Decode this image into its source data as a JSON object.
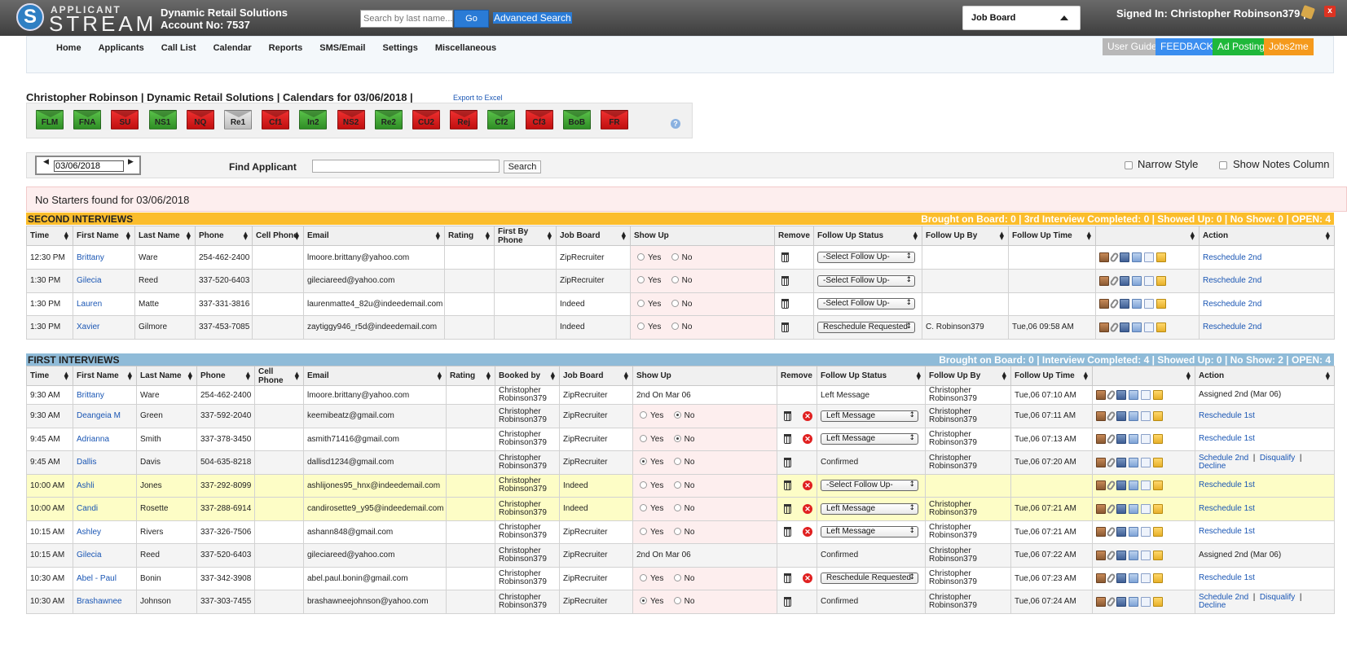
{
  "header": {
    "logo_top": "APPLICANT",
    "logo_main": "STREAM",
    "logo_mark": "S",
    "company": "Dynamic Retail Solutions",
    "account": "Account No: 7537",
    "search_placeholder": "Search by last name...",
    "go_label": "Go",
    "advanced_search": "Advanced Search",
    "job_board_select": "Job Board",
    "signed_in": "Signed In: Christopher Robinson379 |",
    "close_glyph": "x"
  },
  "nav": {
    "items": [
      "Home",
      "Applicants",
      "Call List",
      "Calendar",
      "Reports",
      "SMS/Email",
      "Settings",
      "Miscellaneous"
    ],
    "user_guide": "User Guide",
    "feedback": "FEEDBACK",
    "ad_posting": "Ad Posting",
    "jobs2me": "Jobs2me"
  },
  "page": {
    "title": "Christopher Robinson | Dynamic Retail Solutions | Calendars for 03/06/2018 |",
    "export": "Export to Excel",
    "help_glyph": "?"
  },
  "calendars": [
    {
      "code": "FLM",
      "color": "green"
    },
    {
      "code": "FNA",
      "color": "green"
    },
    {
      "code": "SU",
      "color": "red"
    },
    {
      "code": "NS1",
      "color": "green"
    },
    {
      "code": "NQ",
      "color": "red"
    },
    {
      "code": "Re1",
      "color": "gray"
    },
    {
      "code": "Cf1",
      "color": "red"
    },
    {
      "code": "In2",
      "color": "green"
    },
    {
      "code": "NS2",
      "color": "red"
    },
    {
      "code": "Re2",
      "color": "green"
    },
    {
      "code": "CU2",
      "color": "red"
    },
    {
      "code": "Rej",
      "color": "red"
    },
    {
      "code": "Cf2",
      "color": "green"
    },
    {
      "code": "Cf3",
      "color": "red"
    },
    {
      "code": "BoB",
      "color": "green"
    },
    {
      "code": "FR",
      "color": "red"
    }
  ],
  "filters": {
    "date_prev": "◀",
    "date_next": "▶",
    "date": "03/06/2018",
    "find_label": "Find Applicant",
    "find_button": "Search",
    "narrow_style": "Narrow Style",
    "show_notes": "Show Notes Column"
  },
  "no_starters": "No Starters found for 03/06/2018",
  "colors": {
    "second_bar": "#fbbd2c",
    "first_bar": "#8fbbd8",
    "feedback": "#3a8ef0",
    "ad_posting": "#1fb83a",
    "jobs2me": "#f59a1c",
    "user_guide": "#b8b8b8"
  },
  "second_interviews": {
    "title": "SECOND INTERVIEWS",
    "stats": "Brought on Board: 0 | 3rd Interview Completed: 0 | Showed Up: 0 | No Show: 0 | OPEN: 4",
    "columns": [
      "Time",
      "First Name",
      "Last Name",
      "Phone",
      "Cell Phone",
      "Email",
      "Rating",
      "First By Phone",
      "Job Board",
      "Show Up",
      "Remove",
      "Follow Up Status",
      "Follow Up By",
      "Follow Up Time",
      "",
      "Action"
    ],
    "rows": [
      {
        "time": "12:30 PM",
        "first": "Brittany",
        "last": "Ware",
        "phone": "254-462-2400",
        "cell": "",
        "email": "lmoore.brittany@yahoo.com",
        "rating": "",
        "fbp": "",
        "board": "ZipRecruiter",
        "yes": "Yes",
        "no": "No",
        "followup": "-Select Follow Up-",
        "fby": "",
        "ftime": "",
        "action": "Reschedule 2nd"
      },
      {
        "time": "1:30 PM",
        "first": "Gilecia",
        "last": "Reed",
        "phone": "337-520-6403",
        "cell": "",
        "email": "gileciareed@yahoo.com",
        "rating": "",
        "fbp": "",
        "board": "ZipRecruiter",
        "yes": "Yes",
        "no": "No",
        "followup": "-Select Follow Up-",
        "fby": "",
        "ftime": "",
        "action": "Reschedule 2nd"
      },
      {
        "time": "1:30 PM",
        "first": "Lauren",
        "last": "Matte",
        "phone": "337-331-3816",
        "cell": "",
        "email": "laurenmatte4_82u@indeedemail.com",
        "rating": "",
        "fbp": "",
        "board": "Indeed",
        "yes": "Yes",
        "no": "No",
        "followup": "-Select Follow Up-",
        "fby": "",
        "ftime": "",
        "action": "Reschedule 2nd"
      },
      {
        "time": "1:30 PM",
        "first": "Xavier",
        "last": "Gilmore",
        "phone": "337-453-7085",
        "cell": "",
        "email": "zaytiggy946_r5d@indeedemail.com",
        "rating": "",
        "fbp": "",
        "board": "Indeed",
        "yes": "Yes",
        "no": "No",
        "followup": "Reschedule Requested",
        "fby": "C. Robinson379",
        "ftime": "Tue,06 09:58 AM",
        "action": "Reschedule 2nd"
      }
    ]
  },
  "first_interviews": {
    "title": "FIRST INTERVIEWS",
    "stats": "Brought on Board: 0 | Interview Completed: 4 | Showed Up: 0 | No Show: 2 | OPEN: 4",
    "columns": [
      "Time",
      "First Name",
      "Last Name",
      "Phone",
      "Cell Phone",
      "Email",
      "Rating",
      "Booked by",
      "Job Board",
      "Show Up",
      "Remove",
      "Follow Up Status",
      "Follow Up By",
      "Follow Up Time",
      "",
      "Action"
    ],
    "rows": [
      {
        "time": "9:30 AM",
        "first": "Brittany",
        "last": "Ware",
        "phone": "254-462-2400",
        "email": "lmoore.brittany@yahoo.com",
        "booked": "Christopher Robinson379",
        "board": "ZipRecruiter",
        "show": "2nd On Mar 06",
        "followup": "Left Message",
        "fby": "Christopher Robinson379",
        "ftime": "Tue,06 07:10 AM",
        "action": "Assigned 2nd (Mar 06)"
      },
      {
        "time": "9:30 AM",
        "first": "Deangeia M",
        "last": "Green",
        "phone": "337-592-2040",
        "email": "keemibeatz@gmail.com",
        "booked": "Christopher Robinson379",
        "board": "ZipRecruiter",
        "yes": "Yes",
        "no": "No",
        "followup": "Left Message",
        "fby": "Christopher Robinson379",
        "ftime": "Tue,06 07:11 AM",
        "action": "Reschedule 1st"
      },
      {
        "time": "9:45 AM",
        "first": "Adrianna",
        "last": "Smith",
        "phone": "337-378-3450",
        "email": "asmith71416@gmail.com",
        "booked": "Christopher Robinson379",
        "board": "ZipRecruiter",
        "yes": "Yes",
        "no": "No",
        "followup": "Left Message",
        "fby": "Christopher Robinson379",
        "ftime": "Tue,06 07:13 AM",
        "action": "Reschedule 1st"
      },
      {
        "time": "9:45 AM",
        "first": "Dallis",
        "last": "Davis",
        "phone": "504-635-8218",
        "email": "dallisd1234@gmail.com",
        "booked": "Christopher Robinson379",
        "board": "ZipRecruiter",
        "yes": "Yes",
        "no": "No",
        "followup": "Confirmed",
        "fby": "Christopher Robinson379",
        "ftime": "Tue,06 07:20 AM",
        "action_a": "Schedule 2nd",
        "action_b": "Disqualify",
        "action_c": "Decline",
        "sep": "|"
      },
      {
        "time": "10:00 AM",
        "first": "Ashli",
        "last": "Jones",
        "phone": "337-292-8099",
        "email": "ashlijones95_hnx@indeedemail.com",
        "booked": "Christopher Robinson379",
        "board": "Indeed",
        "yes": "Yes",
        "no": "No",
        "followup": "-Select Follow Up-",
        "fby": "",
        "ftime": "",
        "action": "Reschedule 1st"
      },
      {
        "time": "10:00 AM",
        "first": "Candi",
        "last": "Rosette",
        "phone": "337-288-6914",
        "email": "candirosette9_y95@indeedemail.com",
        "booked": "Christopher Robinson379",
        "board": "Indeed",
        "yes": "Yes",
        "no": "No",
        "followup": "Left Message",
        "fby": "Christopher Robinson379",
        "ftime": "Tue,06 07:21 AM",
        "action": "Reschedule 1st"
      },
      {
        "time": "10:15 AM",
        "first": "Ashley",
        "last": "Rivers",
        "phone": "337-326-7506",
        "email": "ashann848@gmail.com",
        "booked": "Christopher Robinson379",
        "board": "ZipRecruiter",
        "yes": "Yes",
        "no": "No",
        "followup": "Left Message",
        "fby": "Christopher Robinson379",
        "ftime": "Tue,06 07:21 AM",
        "action": "Reschedule 1st"
      },
      {
        "time": "10:15 AM",
        "first": "Gilecia",
        "last": "Reed",
        "phone": "337-520-6403",
        "email": "gileciareed@yahoo.com",
        "booked": "Christopher Robinson379",
        "board": "ZipRecruiter",
        "show": "2nd On Mar 06",
        "followup": "Confirmed",
        "fby": "Christopher Robinson379",
        "ftime": "Tue,06 07:22 AM",
        "action": "Assigned 2nd (Mar 06)"
      },
      {
        "time": "10:30 AM",
        "first": "Abel - Paul",
        "last": "Bonin",
        "phone": "337-342-3908",
        "email": "abel.paul.bonin@gmail.com",
        "booked": "Christopher Robinson379",
        "board": "ZipRecruiter",
        "yes": "Yes",
        "no": "No",
        "followup": "Reschedule Requested",
        "fby": "Christopher Robinson379",
        "ftime": "Tue,06 07:23 AM",
        "action": "Reschedule 1st"
      },
      {
        "time": "10:30 AM",
        "first": "Brashawnee",
        "last": "Johnson",
        "phone": "337-303-7455",
        "email": "brashawneejohnson@yahoo.com",
        "booked": "Christopher Robinson379",
        "board": "ZipRecruiter",
        "yes": "Yes",
        "no": "No",
        "followup": "Confirmed",
        "fby": "Christopher Robinson379",
        "ftime": "Tue,06 07:24 AM",
        "action_a": "Schedule 2nd",
        "action_b": "Disqualify",
        "action_c": "Decline",
        "sep": "|"
      }
    ]
  }
}
